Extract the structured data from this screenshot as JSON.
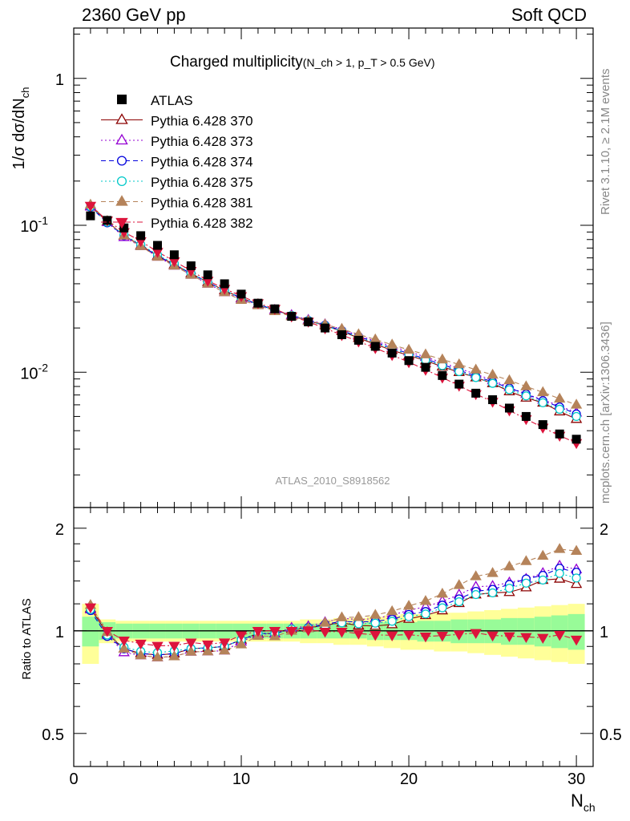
{
  "header": {
    "left": "2360 GeV pp",
    "right": "Soft QCD"
  },
  "side_text": {
    "rivet": "Rivet 3.1.10, ≥ 2.1M events",
    "mcplots": "mcplots.cern.ch [arXiv:1306.3436]"
  },
  "chart_data": [
    {
      "type": "scatter",
      "title": "Charged multiplicity",
      "title_sub": "(N_ch > 1, p_T > 0.5 GeV)",
      "ylabel": "1/σ dσ/dN_ch",
      "xlim": [
        0,
        31
      ],
      "ylim": [
        0.0012,
        2.2
      ],
      "yscale": "log",
      "yticks": [
        {
          "v": 1,
          "label": "1"
        },
        {
          "v": 0.1,
          "label": "10^-1"
        },
        {
          "v": 0.01,
          "label": "10^-2"
        }
      ],
      "analysis_label": "ATLAS_2010_S8918562",
      "legend_position": "top-left",
      "x": [
        1,
        2,
        3,
        4,
        5,
        6,
        7,
        8,
        9,
        10,
        11,
        12,
        13,
        14,
        15,
        16,
        17,
        18,
        19,
        20,
        21,
        22,
        23,
        24,
        25,
        26,
        27,
        28,
        29,
        30
      ],
      "data": {
        "name": "ATLAS",
        "color": "#000000",
        "values": [
          0.116,
          0.108,
          0.096,
          0.085,
          0.073,
          0.063,
          0.053,
          0.046,
          0.04,
          0.034,
          0.0295,
          0.027,
          0.024,
          0.022,
          0.02,
          0.018,
          0.0165,
          0.015,
          0.0135,
          0.012,
          0.0108,
          0.0095,
          0.0083,
          0.0072,
          0.0065,
          0.0057,
          0.005,
          0.0044,
          0.0038,
          0.0035
        ]
      },
      "series": [
        {
          "name": "Pythia 6.428 370",
          "color": "#8b0000",
          "marker": "triangle-open",
          "line": "solid",
          "values": [
            0.135,
            0.106,
            0.085,
            0.073,
            0.062,
            0.054,
            0.047,
            0.041,
            0.036,
            0.032,
            0.029,
            0.0265,
            0.0243,
            0.0224,
            0.0208,
            0.019,
            0.0171,
            0.0155,
            0.0141,
            0.013,
            0.012,
            0.0109,
            0.01,
            0.0092,
            0.0084,
            0.0074,
            0.0067,
            0.0062,
            0.0054,
            0.0048
          ]
        },
        {
          "name": "Pythia 6.428 373",
          "color": "#9400d3",
          "marker": "triangle-open",
          "line": "dotted",
          "values": [
            0.134,
            0.105,
            0.083,
            0.072,
            0.061,
            0.053,
            0.046,
            0.04,
            0.035,
            0.0316,
            0.0288,
            0.0265,
            0.0245,
            0.0227,
            0.0212,
            0.0196,
            0.0178,
            0.0163,
            0.015,
            0.0138,
            0.0127,
            0.0116,
            0.0106,
            0.0097,
            0.0088,
            0.0079,
            0.0071,
            0.0065,
            0.0059,
            0.0053
          ]
        },
        {
          "name": "Pythia 6.428 374",
          "color": "#0000dd",
          "marker": "circle-open",
          "line": "dashed",
          "values": [
            0.133,
            0.104,
            0.085,
            0.073,
            0.062,
            0.054,
            0.047,
            0.041,
            0.036,
            0.032,
            0.029,
            0.0265,
            0.0243,
            0.0225,
            0.0209,
            0.0192,
            0.0175,
            0.016,
            0.0146,
            0.0134,
            0.0123,
            0.0113,
            0.0103,
            0.0094,
            0.0086,
            0.0078,
            0.0071,
            0.0064,
            0.0058,
            0.0052
          ]
        },
        {
          "name": "Pythia 6.428 375",
          "color": "#00c8c8",
          "marker": "circle-open",
          "line": "dotted",
          "values": [
            0.134,
            0.105,
            0.086,
            0.074,
            0.063,
            0.055,
            0.047,
            0.041,
            0.036,
            0.032,
            0.029,
            0.0265,
            0.0243,
            0.0224,
            0.0207,
            0.019,
            0.0173,
            0.0158,
            0.0144,
            0.0132,
            0.0121,
            0.0111,
            0.0101,
            0.0092,
            0.0084,
            0.0076,
            0.0069,
            0.0062,
            0.0056,
            0.005
          ]
        },
        {
          "name": "Pythia 6.428 381",
          "color": "#b5835a",
          "marker": "triangle-filled",
          "line": "dashed",
          "values": [
            0.138,
            0.107,
            0.085,
            0.072,
            0.061,
            0.053,
            0.046,
            0.04,
            0.035,
            0.031,
            0.0285,
            0.026,
            0.024,
            0.0224,
            0.0211,
            0.0197,
            0.0181,
            0.0167,
            0.0154,
            0.0142,
            0.0132,
            0.0122,
            0.0113,
            0.0104,
            0.0096,
            0.0088,
            0.008,
            0.0073,
            0.0066,
            0.006
          ]
        },
        {
          "name": "Pythia 6.428 382",
          "color": "#dc143c",
          "marker": "triangle-down-filled",
          "line": "dashdot",
          "values": [
            0.136,
            0.108,
            0.09,
            0.078,
            0.066,
            0.057,
            0.049,
            0.042,
            0.037,
            0.033,
            0.0295,
            0.027,
            0.024,
            0.0221,
            0.0199,
            0.0179,
            0.0162,
            0.0146,
            0.0131,
            0.0117,
            0.0104,
            0.0092,
            0.0081,
            0.0071,
            0.0063,
            0.0055,
            0.0048,
            0.0042,
            0.0037,
            0.0033
          ]
        }
      ]
    },
    {
      "type": "scatter",
      "ylabel": "Ratio to ATLAS",
      "xlabel": "N_ch",
      "xlim": [
        0,
        31
      ],
      "ylim": [
        0.4,
        2.3
      ],
      "yscale": "log",
      "xticks": [
        0,
        10,
        20,
        30
      ],
      "yticks": [
        {
          "v": 2,
          "label": "2"
        },
        {
          "v": 1,
          "label": "1"
        },
        {
          "v": 0.5,
          "label": "0.5"
        }
      ],
      "bands": {
        "x": [
          1,
          2,
          3,
          4,
          5,
          6,
          7,
          8,
          9,
          10,
          11,
          12,
          13,
          14,
          15,
          16,
          17,
          18,
          19,
          20,
          21,
          22,
          23,
          24,
          25,
          26,
          27,
          28,
          29,
          30
        ],
        "stat_halfwidth": [
          0.1,
          0.06,
          0.05,
          0.05,
          0.05,
          0.05,
          0.05,
          0.05,
          0.05,
          0.05,
          0.05,
          0.05,
          0.05,
          0.05,
          0.05,
          0.05,
          0.05,
          0.06,
          0.06,
          0.06,
          0.07,
          0.07,
          0.08,
          0.08,
          0.08,
          0.09,
          0.09,
          0.1,
          0.11,
          0.12
        ],
        "total_halfwidth": [
          0.2,
          0.08,
          0.07,
          0.07,
          0.07,
          0.07,
          0.07,
          0.07,
          0.07,
          0.07,
          0.07,
          0.07,
          0.07,
          0.08,
          0.08,
          0.09,
          0.09,
          0.1,
          0.11,
          0.12,
          0.12,
          0.13,
          0.13,
          0.14,
          0.15,
          0.16,
          0.17,
          0.18,
          0.19,
          0.2
        ],
        "stat_color": "#98fb98",
        "total_color": "#ffff99"
      }
    }
  ]
}
